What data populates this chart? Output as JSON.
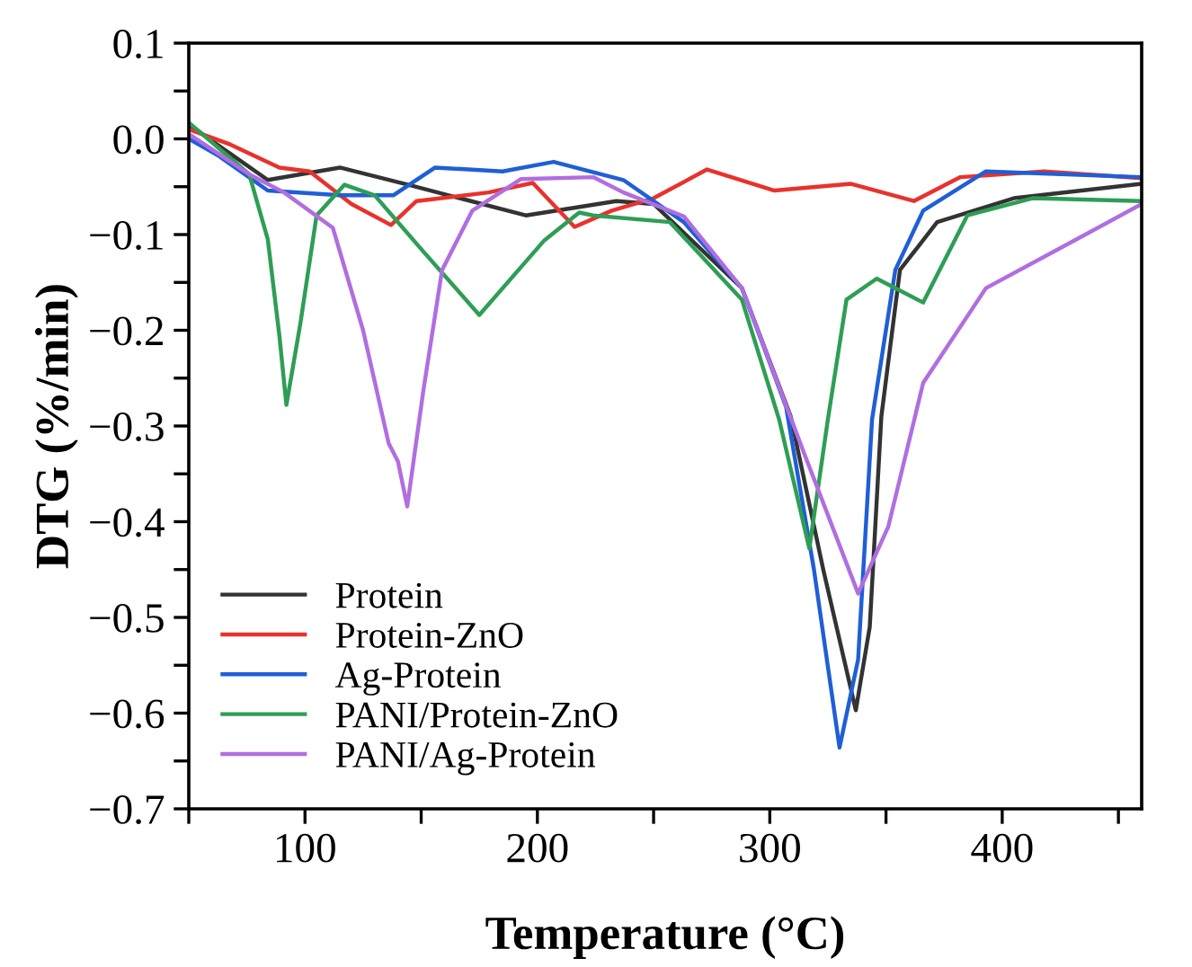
{
  "chart_data": {
    "type": "line",
    "xlabel": "Temperature (°C)",
    "ylabel": "DTG (%/min)",
    "xlim": [
      50,
      460
    ],
    "ylim": [
      -0.7,
      0.1
    ],
    "xticks": [
      {
        "value": 50,
        "label": null
      },
      100,
      {
        "value": 150,
        "label": null
      },
      200,
      {
        "value": 250,
        "label": null
      },
      300,
      {
        "value": 350,
        "label": null
      },
      400,
      {
        "value": 450,
        "label": null
      }
    ],
    "yticks": [
      -0.7,
      {
        "value": -0.65,
        "label": null
      },
      -0.6,
      {
        "value": -0.55,
        "label": null
      },
      -0.5,
      {
        "value": -0.45,
        "label": null
      },
      -0.4,
      {
        "value": -0.35,
        "label": null
      },
      -0.3,
      {
        "value": -0.25,
        "label": null
      },
      -0.2,
      {
        "value": -0.15,
        "label": null
      },
      -0.1,
      {
        "value": -0.05,
        "label": null
      },
      {
        "value": 0.0,
        "label": "0.0"
      },
      {
        "value": 0.05,
        "label": null
      },
      0.1
    ],
    "grid": false,
    "legend": "bottom left",
    "marker": "none",
    "line_style": "solid",
    "series": [
      {
        "name": "Protein",
        "color": "#333333",
        "x": [
          50,
          84,
          115,
          146,
          195,
          234,
          250,
          288,
          309,
          323,
          337,
          343,
          348,
          356,
          372,
          405,
          460
        ],
        "values": [
          0.015,
          -0.043,
          -0.03,
          -0.049,
          -0.08,
          -0.065,
          -0.068,
          -0.156,
          -0.29,
          -0.45,
          -0.597,
          -0.51,
          -0.29,
          -0.137,
          -0.087,
          -0.062,
          -0.047
        ]
      },
      {
        "name": "Protein-ZnO",
        "color": "#e8322d",
        "x": [
          50,
          68,
          89,
          102,
          120,
          137,
          148,
          179,
          198,
          216,
          232,
          250,
          273,
          302,
          335,
          362,
          382,
          418,
          460
        ],
        "values": [
          0.01,
          -0.006,
          -0.03,
          -0.034,
          -0.068,
          -0.09,
          -0.065,
          -0.056,
          -0.046,
          -0.092,
          -0.075,
          -0.062,
          -0.032,
          -0.054,
          -0.047,
          -0.065,
          -0.04,
          -0.034,
          -0.041
        ]
      },
      {
        "name": "Ag-Protein",
        "color": "#1f5fd6",
        "x": [
          50,
          63,
          84,
          115,
          138,
          156,
          185,
          207,
          237,
          263,
          288,
          307,
          319,
          330,
          338,
          344,
          354,
          366,
          393,
          460
        ],
        "values": [
          0.0,
          -0.018,
          -0.054,
          -0.059,
          -0.059,
          -0.03,
          -0.034,
          -0.024,
          -0.043,
          -0.087,
          -0.156,
          -0.28,
          -0.45,
          -0.636,
          -0.544,
          -0.293,
          -0.137,
          -0.075,
          -0.034,
          -0.04
        ]
      },
      {
        "name": "PANI/Protein-ZnO",
        "color": "#2e9e55",
        "x": [
          50,
          76,
          84,
          89,
          92,
          98,
          105,
          117,
          130,
          151,
          175,
          203,
          218,
          224,
          257,
          288,
          304,
          317,
          325,
          333,
          346,
          366,
          385,
          413,
          460
        ],
        "values": [
          0.017,
          -0.037,
          -0.105,
          -0.206,
          -0.278,
          -0.193,
          -0.08,
          -0.048,
          -0.059,
          -0.118,
          -0.184,
          -0.106,
          -0.077,
          -0.08,
          -0.087,
          -0.168,
          -0.293,
          -0.428,
          -0.293,
          -0.168,
          -0.146,
          -0.171,
          -0.08,
          -0.062,
          -0.065
        ]
      },
      {
        "name": "PANI/Ag-Protein",
        "color": "#b06ee0",
        "x": [
          50,
          76,
          91,
          112,
          125,
          136,
          140,
          144,
          151,
          159,
          172,
          193,
          224,
          237,
          263,
          288,
          315,
          338,
          351,
          366,
          393,
          432,
          460
        ],
        "values": [
          0.005,
          -0.037,
          -0.056,
          -0.093,
          -0.2,
          -0.318,
          -0.337,
          -0.384,
          -0.262,
          -0.137,
          -0.075,
          -0.042,
          -0.04,
          -0.056,
          -0.081,
          -0.156,
          -0.33,
          -0.475,
          -0.405,
          -0.255,
          -0.156,
          -0.105,
          -0.068
        ]
      }
    ]
  }
}
